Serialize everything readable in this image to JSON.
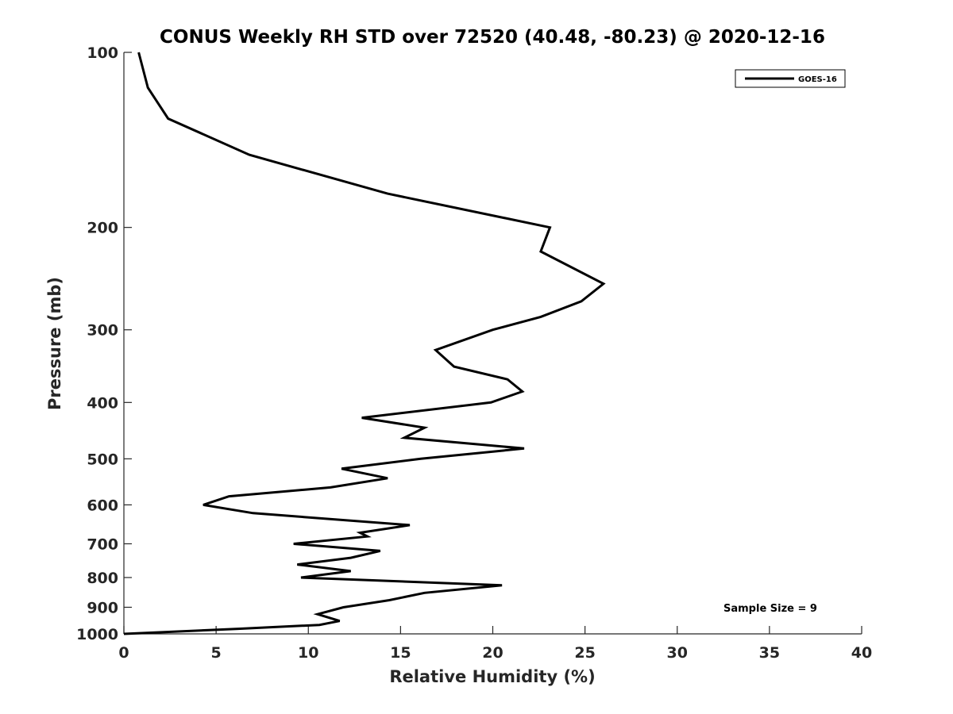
{
  "chart_data": {
    "type": "line",
    "title": "CONUS Weekly RH STD over 72520 (40.48, -80.23) @ 2020-12-16",
    "xlabel": "Relative Humidity (%)",
    "ylabel": "Pressure (mb)",
    "xlim": [
      0,
      40
    ],
    "ylim": [
      100,
      1000
    ],
    "yscale": "log",
    "y_reversed": true,
    "grid": false,
    "x_ticks": [
      0,
      5,
      10,
      15,
      20,
      25,
      30,
      35,
      40
    ],
    "y_ticks": [
      100,
      200,
      300,
      400,
      500,
      600,
      700,
      800,
      900,
      1000
    ],
    "legend_position": "top-right",
    "annotation": "Sample Size = 9",
    "series": [
      {
        "name": "GOES-16",
        "color": "#000000",
        "x": [
          0.8,
          1.3,
          2.4,
          6.8,
          14.3,
          23.1,
          22.6,
          26.0,
          24.8,
          22.6,
          20.0,
          16.9,
          17.9,
          20.8,
          21.6,
          19.9,
          12.9,
          16.3,
          15.2,
          21.7,
          16.1,
          11.8,
          14.3,
          11.2,
          5.7,
          4.3,
          7.0,
          15.5,
          12.8,
          13.2,
          9.2,
          13.9,
          12.3,
          9.4,
          12.3,
          9.6,
          20.5,
          16.3,
          14.4,
          11.9,
          10.5,
          11.7,
          10.6,
          6.2,
          0.0
        ],
        "y": [
          100,
          115,
          130,
          150,
          175,
          200,
          220,
          250,
          268,
          285,
          300,
          325,
          347,
          365,
          383,
          400,
          425,
          442,
          460,
          480,
          500,
          520,
          540,
          560,
          580,
          600,
          620,
          650,
          670,
          680,
          700,
          720,
          740,
          760,
          780,
          800,
          825,
          850,
          875,
          900,
          925,
          950,
          965,
          980,
          1000
        ]
      }
    ]
  }
}
